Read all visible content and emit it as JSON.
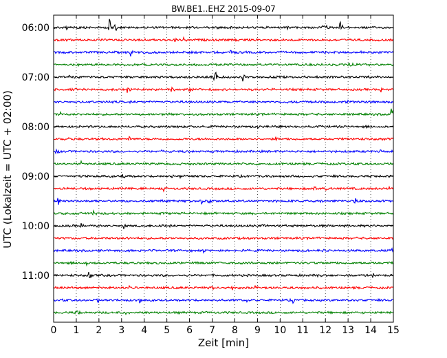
{
  "chart_data": {
    "type": "line",
    "title": "BW.BE1..EHZ 2015-09-07",
    "xlabel": "Zeit  [min]",
    "ylabel": "UTC (Lokalzeit = UTC + 02:00)",
    "xlim": [
      0,
      15
    ],
    "x_ticks": [
      "0",
      "1",
      "2",
      "3",
      "4",
      "5",
      "6",
      "7",
      "8",
      "9",
      "10",
      "11",
      "12",
      "13",
      "14",
      "15"
    ],
    "y_ticks": [
      "06:00",
      "07:00",
      "08:00",
      "09:00",
      "10:00",
      "11:00"
    ],
    "grid": "vertical dotted",
    "trace_interval_min": 15,
    "start_time": "06:00",
    "colors": [
      "#000000",
      "#ff0000",
      "#0000ff",
      "#008000"
    ],
    "series": [
      {
        "start": "06:00",
        "color": "#000000",
        "events": [
          [
            0.55,
            0.25
          ],
          [
            1.0,
            0.2
          ],
          [
            2.45,
            1.0
          ],
          [
            2.7,
            0.35
          ],
          [
            6.1,
            0.2
          ],
          [
            7.2,
            0.25
          ],
          [
            10.3,
            0.25
          ],
          [
            11.9,
            0.5
          ],
          [
            12.65,
            0.75
          ]
        ]
      },
      {
        "start": "06:15",
        "color": "#ff0000",
        "events": [
          [
            3.5,
            0.25
          ],
          [
            5.35,
            0.45
          ],
          [
            5.7,
            0.35
          ],
          [
            8.0,
            0.2
          ]
        ]
      },
      {
        "start": "06:30",
        "color": "#0000ff",
        "events": [
          [
            3.4,
            0.4
          ],
          [
            7.8,
            0.25
          ],
          [
            13.5,
            0.2
          ]
        ]
      },
      {
        "start": "06:45",
        "color": "#008000",
        "events": [
          [
            13.05,
            0.25
          ]
        ]
      },
      {
        "start": "07:00",
        "color": "#000000",
        "events": [
          [
            0.7,
            0.3
          ],
          [
            1.35,
            0.35
          ],
          [
            7.1,
            1.0
          ],
          [
            8.35,
            0.35
          ]
        ]
      },
      {
        "start": "07:15",
        "color": "#ff0000",
        "events": [
          [
            3.25,
            0.3
          ],
          [
            5.2,
            0.35
          ],
          [
            6.0,
            0.2
          ],
          [
            14.45,
            0.25
          ]
        ]
      },
      {
        "start": "07:30",
        "color": "#0000ff",
        "events": [
          [
            13.0,
            0.2
          ],
          [
            13.8,
            0.2
          ]
        ]
      },
      {
        "start": "07:45",
        "color": "#008000",
        "events": [
          [
            0.3,
            0.25
          ],
          [
            3.8,
            0.2
          ],
          [
            14.9,
            0.45
          ]
        ]
      },
      {
        "start": "08:00",
        "color": "#000000",
        "events": [
          [
            6.2,
            0.2
          ],
          [
            9.0,
            0.2
          ]
        ]
      },
      {
        "start": "08:15",
        "color": "#ff0000",
        "events": [
          [
            0.6,
            0.3
          ],
          [
            3.35,
            0.25
          ],
          [
            9.8,
            0.2
          ]
        ]
      },
      {
        "start": "08:30",
        "color": "#0000ff",
        "events": [
          [
            0.1,
            0.3
          ],
          [
            4.75,
            0.25
          ],
          [
            5.15,
            0.2
          ],
          [
            7.2,
            0.2
          ],
          [
            14.4,
            0.2
          ]
        ]
      },
      {
        "start": "08:45",
        "color": "#008000",
        "events": [
          [
            1.2,
            0.2
          ],
          [
            9.3,
            0.15
          ]
        ]
      },
      {
        "start": "09:00",
        "color": "#000000",
        "events": [
          [
            3.05,
            0.35
          ],
          [
            5.2,
            0.35
          ],
          [
            5.6,
            0.2
          ],
          [
            9.1,
            0.15
          ]
        ]
      },
      {
        "start": "09:15",
        "color": "#ff0000",
        "events": [
          [
            4.85,
            0.3
          ],
          [
            11.5,
            0.2
          ],
          [
            12.0,
            0.25
          ],
          [
            14.8,
            0.2
          ]
        ]
      },
      {
        "start": "09:30",
        "color": "#0000ff",
        "events": [
          [
            0.2,
            0.45
          ],
          [
            6.5,
            0.35
          ],
          [
            6.85,
            0.4
          ],
          [
            11.8,
            0.2
          ],
          [
            13.3,
            0.25
          ]
        ]
      },
      {
        "start": "09:45",
        "color": "#008000",
        "events": [
          [
            1.2,
            0.3
          ],
          [
            1.7,
            0.35
          ],
          [
            5.65,
            0.2
          ]
        ]
      },
      {
        "start": "10:00",
        "color": "#000000",
        "events": [
          [
            1.2,
            0.25
          ],
          [
            3.1,
            0.4
          ],
          [
            4.6,
            0.2
          ],
          [
            9.2,
            0.15
          ]
        ]
      },
      {
        "start": "10:15",
        "color": "#ff0000",
        "events": [
          [
            3.2,
            0.15
          ],
          [
            8.5,
            0.15
          ]
        ]
      },
      {
        "start": "10:30",
        "color": "#0000ff",
        "events": [
          [
            6.6,
            0.2
          ],
          [
            11.9,
            0.25
          ],
          [
            14.95,
            0.35
          ]
        ]
      },
      {
        "start": "10:45",
        "color": "#008000",
        "events": [
          [
            1.45,
            0.3
          ],
          [
            3.6,
            0.15
          ]
        ]
      },
      {
        "start": "11:00",
        "color": "#000000",
        "events": [
          [
            1.55,
            0.3
          ],
          [
            11.65,
            0.2
          ],
          [
            14.1,
            0.25
          ]
        ]
      },
      {
        "start": "11:15",
        "color": "#ff0000",
        "events": [
          [
            3.3,
            0.5
          ],
          [
            7.0,
            0.25
          ],
          [
            7.8,
            0.35
          ],
          [
            8.9,
            0.25
          ]
        ]
      },
      {
        "start": "11:30",
        "color": "#0000ff",
        "events": [
          [
            1.95,
            0.2
          ],
          [
            3.8,
            0.25
          ],
          [
            8.55,
            0.3
          ],
          [
            10.55,
            0.35
          ],
          [
            13.05,
            0.3
          ]
        ]
      },
      {
        "start": "11:45",
        "color": "#008000",
        "events": [
          [
            1.05,
            0.2
          ],
          [
            3.2,
            0.15
          ]
        ]
      }
    ]
  }
}
